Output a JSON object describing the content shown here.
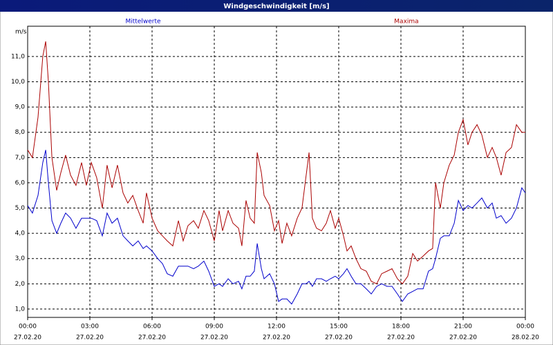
{
  "chart_data": {
    "type": "line",
    "title": "Windgeschwindigkeit [m/s]",
    "y_unit": "m/s",
    "x": [
      0,
      0.23,
      0.5,
      0.73,
      0.87,
      1,
      1.17,
      1.4,
      1.6,
      1.83,
      2.07,
      2.33,
      2.6,
      2.83,
      3.07,
      3.33,
      3.6,
      3.83,
      4.07,
      4.33,
      4.6,
      4.83,
      5.07,
      5.33,
      5.57,
      5.73,
      6,
      6.27,
      6.5,
      6.73,
      7,
      7.27,
      7.5,
      7.73,
      8,
      8.23,
      8.5,
      8.73,
      9,
      9.23,
      9.4,
      9.67,
      9.9,
      10.17,
      10.33,
      10.53,
      10.73,
      10.93,
      11.07,
      11.27,
      11.4,
      11.67,
      11.9,
      12.1,
      12.27,
      12.5,
      12.73,
      13,
      13.23,
      13.43,
      13.57,
      13.73,
      13.93,
      14.17,
      14.4,
      14.6,
      14.83,
      15,
      15.23,
      15.4,
      15.6,
      15.83,
      16.07,
      16.33,
      16.57,
      16.83,
      17.07,
      17.33,
      17.57,
      17.83,
      18.07,
      18.33,
      18.57,
      18.8,
      19.07,
      19.33,
      19.53,
      19.67,
      19.9,
      20.07,
      20.33,
      20.57,
      20.77,
      21,
      21.23,
      21.43,
      21.67,
      21.9,
      22.17,
      22.4,
      22.6,
      22.83,
      23.07,
      23.33,
      23.57,
      23.83,
      24
    ],
    "series": [
      {
        "name": "Mittelwerte",
        "color": "#0000cc",
        "values": [
          5.1,
          4.8,
          5.5,
          6.8,
          7.3,
          6.0,
          4.5,
          4.0,
          4.4,
          4.8,
          4.6,
          4.2,
          4.6,
          4.6,
          4.6,
          4.5,
          3.9,
          4.8,
          4.4,
          4.6,
          3.9,
          3.7,
          3.5,
          3.7,
          3.4,
          3.5,
          3.3,
          3.0,
          2.8,
          2.4,
          2.3,
          2.7,
          2.7,
          2.7,
          2.6,
          2.7,
          2.9,
          2.5,
          1.9,
          2.0,
          1.9,
          2.2,
          2.0,
          2.1,
          1.8,
          2.3,
          2.3,
          2.5,
          3.6,
          2.6,
          2.2,
          2.4,
          2.0,
          1.3,
          1.4,
          1.4,
          1.2,
          1.6,
          2.0,
          2.0,
          2.1,
          1.9,
          2.2,
          2.2,
          2.1,
          2.2,
          2.3,
          2.2,
          2.4,
          2.6,
          2.3,
          2.0,
          2.0,
          1.8,
          1.6,
          1.9,
          2.0,
          1.9,
          1.9,
          1.6,
          1.3,
          1.6,
          1.7,
          1.8,
          1.8,
          2.5,
          2.6,
          3.0,
          3.8,
          3.9,
          3.9,
          4.4,
          5.3,
          4.9,
          5.1,
          5.0,
          5.2,
          5.4,
          5.0,
          5.2,
          4.6,
          4.7,
          4.4,
          4.6,
          5.0,
          5.8,
          5.6
        ]
      },
      {
        "name": "Maxima",
        "color": "#aa0000",
        "values": [
          7.3,
          7.0,
          8.6,
          11.0,
          11.6,
          10.0,
          7.0,
          5.7,
          6.4,
          7.1,
          6.3,
          5.9,
          6.8,
          5.9,
          6.8,
          6.2,
          5.0,
          6.7,
          5.8,
          6.7,
          5.6,
          5.2,
          5.5,
          4.9,
          4.4,
          5.6,
          4.6,
          4.1,
          3.9,
          3.7,
          3.5,
          4.5,
          3.7,
          4.3,
          4.5,
          4.2,
          4.9,
          4.5,
          3.7,
          4.9,
          4.1,
          4.9,
          4.4,
          4.2,
          3.5,
          5.3,
          4.6,
          4.4,
          7.2,
          6.4,
          5.5,
          5.1,
          4.1,
          4.5,
          3.6,
          4.4,
          3.9,
          4.6,
          5.0,
          6.3,
          7.2,
          4.6,
          4.2,
          4.1,
          4.4,
          4.9,
          4.2,
          4.6,
          3.9,
          3.3,
          3.5,
          3.0,
          2.6,
          2.5,
          2.1,
          2.0,
          2.4,
          2.5,
          2.6,
          2.2,
          2.0,
          2.3,
          3.2,
          2.9,
          3.1,
          3.3,
          3.4,
          6.0,
          5.0,
          6.0,
          6.7,
          7.1,
          8.0,
          8.5,
          7.5,
          8.0,
          8.3,
          7.9,
          7.0,
          7.4,
          7.0,
          6.3,
          7.2,
          7.4,
          8.3,
          8.0,
          8.0
        ]
      }
    ],
    "xlim": [
      0,
      24
    ],
    "xticks": [
      {
        "value": 0,
        "label": "00:00"
      },
      {
        "value": 3,
        "label": "03:00"
      },
      {
        "value": 6,
        "label": "06:00"
      },
      {
        "value": 9,
        "label": "09:00"
      },
      {
        "value": 12,
        "label": "12:00"
      },
      {
        "value": 15,
        "label": "15:00"
      },
      {
        "value": 18,
        "label": "18:00"
      },
      {
        "value": 21,
        "label": "21:00"
      },
      {
        "value": 24,
        "label": "00:00"
      }
    ],
    "xtick_dates": [
      "27.02.20",
      "27.02.20",
      "27.02.20",
      "27.02.20",
      "27.02.20",
      "27.02.20",
      "27.02.20",
      "27.02.20",
      "28.02.20"
    ],
    "ylim": [
      0.67,
      12.2
    ],
    "yticks": [
      {
        "value": 1,
        "label": "1,0"
      },
      {
        "value": 2,
        "label": "2,0"
      },
      {
        "value": 3,
        "label": "3,0"
      },
      {
        "value": 4,
        "label": "4,0"
      },
      {
        "value": 5,
        "label": "5,0"
      },
      {
        "value": 6,
        "label": "6,0"
      },
      {
        "value": 7,
        "label": "7,0"
      },
      {
        "value": 8,
        "label": "8,0"
      },
      {
        "value": 9,
        "label": "9,0"
      },
      {
        "value": 10,
        "label": "10,0"
      },
      {
        "value": 11,
        "label": "11,0"
      }
    ],
    "grid": true
  }
}
